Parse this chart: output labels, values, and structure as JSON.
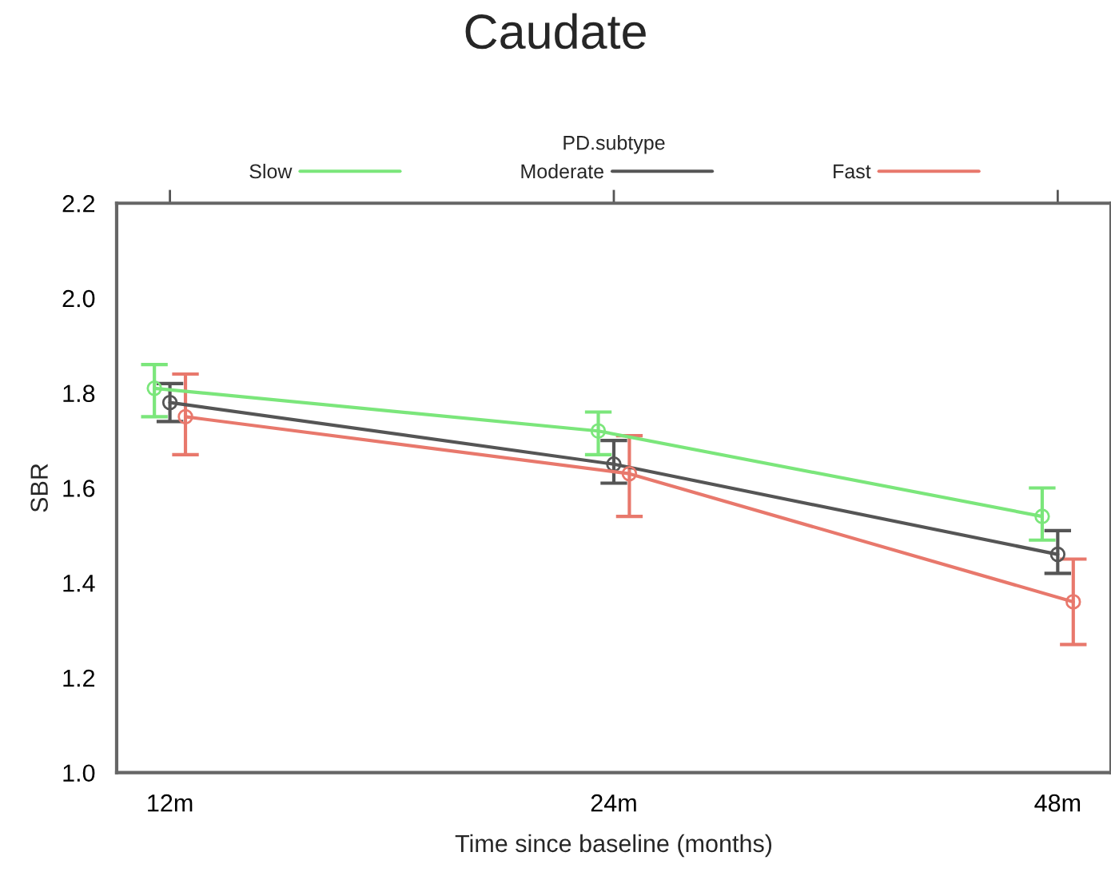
{
  "chart_data": {
    "type": "line",
    "title": "Caudate",
    "xlabel": "Time since baseline (months)",
    "ylabel": "SBR",
    "legend_title": "PD.subtype",
    "categories": [
      "12m",
      "24m",
      "48m"
    ],
    "series": [
      {
        "name": "Slow",
        "color": "#7be67b",
        "values": [
          1.81,
          1.72,
          1.54
        ],
        "errors": [
          [
            1.75,
            1.86
          ],
          [
            1.67,
            1.76
          ],
          [
            1.49,
            1.6
          ]
        ]
      },
      {
        "name": "Moderate",
        "color": "#555555",
        "values": [
          1.78,
          1.65,
          1.46
        ],
        "errors": [
          [
            1.74,
            1.82
          ],
          [
            1.61,
            1.7
          ],
          [
            1.42,
            1.51
          ]
        ]
      },
      {
        "name": "Fast",
        "color": "#e8786c",
        "values": [
          1.75,
          1.63,
          1.36
        ],
        "errors": [
          [
            1.67,
            1.84
          ],
          [
            1.54,
            1.71
          ],
          [
            1.27,
            1.45
          ]
        ]
      }
    ],
    "ylim": [
      1.0,
      2.2
    ],
    "yticks": [
      {
        "value": 1,
        "label": "1.0"
      },
      1.2,
      1.4,
      1.6,
      1.8,
      {
        "value": 2,
        "label": "2.0"
      },
      2.2
    ],
    "grid": false,
    "legend": "top",
    "marker": "circle",
    "line_style": "solid"
  }
}
